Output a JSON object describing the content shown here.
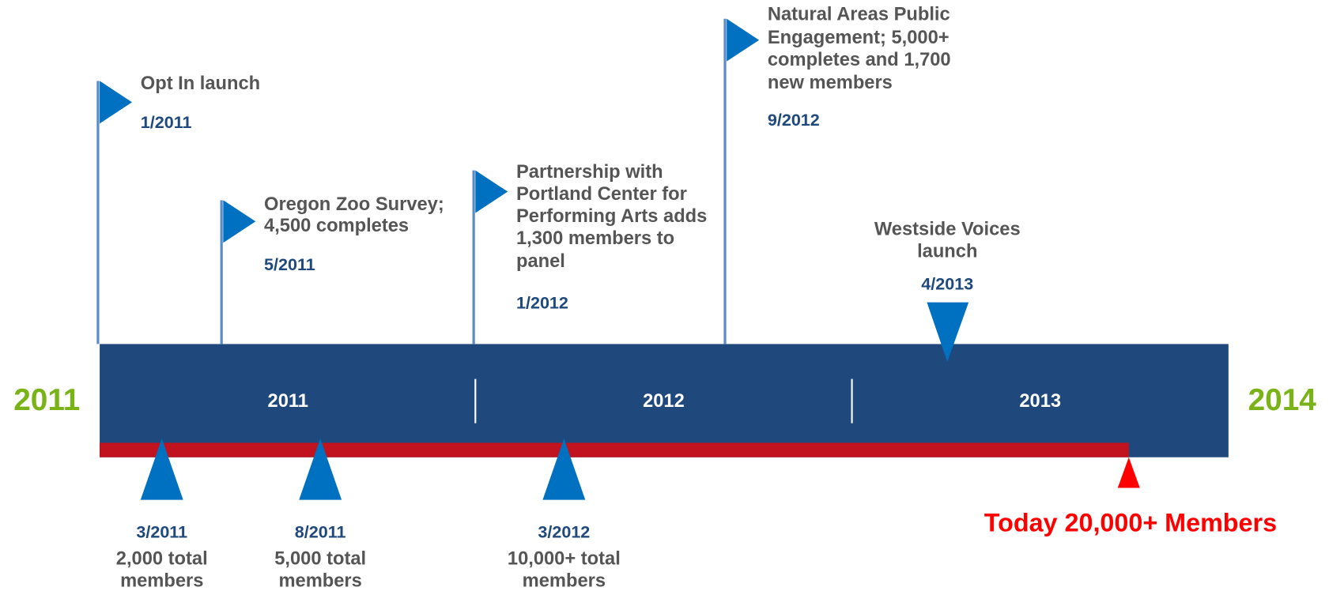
{
  "start_year": "2011",
  "end_year": "2014",
  "bar_years": [
    "2011",
    "2012",
    "2013"
  ],
  "events": [
    {
      "lines": [
        "Opt In launch"
      ],
      "date": "1/2011"
    },
    {
      "lines": [
        "Oregon Zoo Survey;",
        "4,500 completes"
      ],
      "date": "5/2011"
    },
    {
      "lines": [
        "Partnership with",
        "Portland Center for",
        "Performing Arts adds",
        "1,300 members to",
        "panel"
      ],
      "date": "1/2012"
    },
    {
      "lines": [
        "Natural Areas Public",
        "Engagement; 5,000+",
        "completes and 1,700",
        "new members"
      ],
      "date": "9/2012"
    },
    {
      "lines": [
        "Westside Voices",
        "launch"
      ],
      "date": "4/2013"
    }
  ],
  "milestones": [
    {
      "date": "3/2011",
      "lines": [
        "2,000 total",
        "members"
      ]
    },
    {
      "date": "8/2011",
      "lines": [
        "5,000 total",
        "members"
      ]
    },
    {
      "date": "3/2012",
      "lines": [
        "10,000+ total",
        "members"
      ]
    }
  ],
  "today": "Today 20,000+ Members"
}
